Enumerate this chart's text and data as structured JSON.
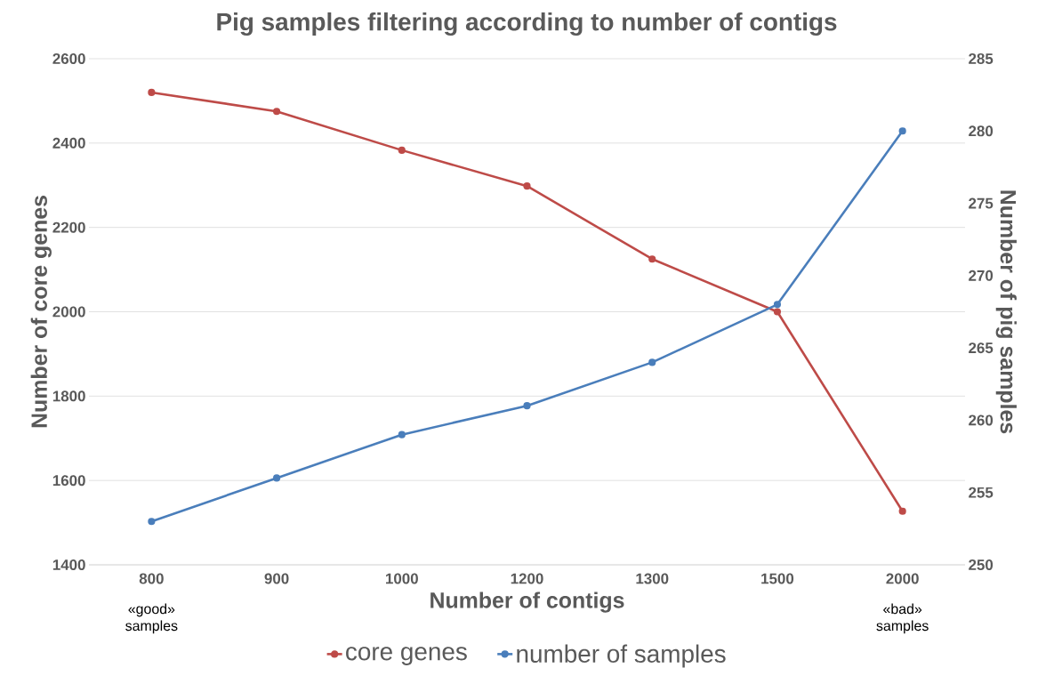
{
  "chart_data": {
    "type": "line",
    "title": "Pig samples filtering according to number of contigs",
    "xlabel": "Number of contigs",
    "ylabel": "Number of core genes",
    "y2label": "Number of pig samples",
    "categories": [
      "800",
      "900",
      "1000",
      "1200",
      "1300",
      "1500",
      "2000"
    ],
    "series": [
      {
        "name": "core genes",
        "color": "#be4b48",
        "values": [
          2520,
          2475,
          2383,
          2298,
          2125,
          2000,
          1527
        ]
      },
      {
        "name": "number of samples",
        "color": "#4a7ebb",
        "axis": "y2",
        "values": [
          253,
          256,
          259,
          261,
          264,
          268,
          280
        ]
      }
    ],
    "ylim": [
      1400,
      2600
    ],
    "yticks": [
      1400,
      1600,
      1800,
      2000,
      2200,
      2400,
      2600
    ],
    "y2lim": [
      250,
      285
    ],
    "y2ticks": [
      250,
      255,
      260,
      265,
      270,
      275,
      280,
      285
    ],
    "grid": "y",
    "legend": "bottom",
    "marker": "circle",
    "line_style": "solid",
    "annotations": [
      "«good» samples",
      "«bad» samples"
    ]
  }
}
